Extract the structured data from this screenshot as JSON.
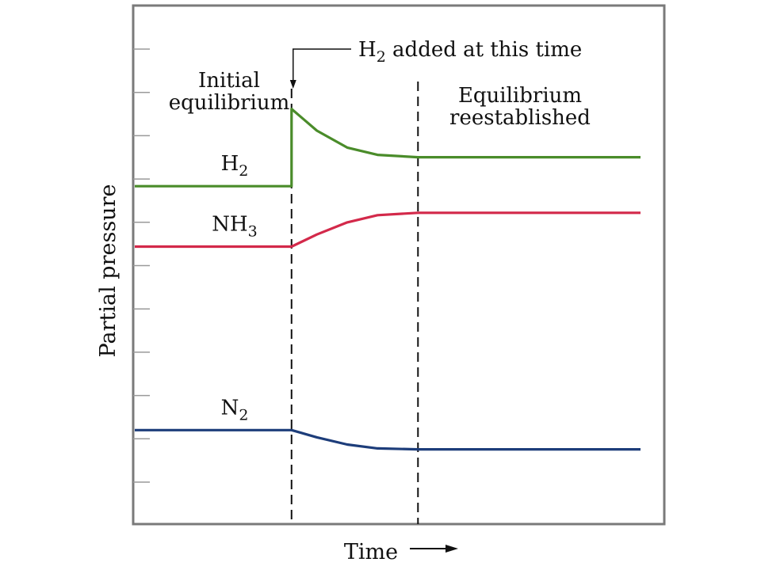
{
  "chart_data": {
    "type": "line",
    "title": "",
    "xlabel": "Time",
    "ylabel": "Partial pressure",
    "xlim": [
      0,
      10
    ],
    "ylim": [
      0,
      10
    ],
    "series": [
      {
        "name": "H2",
        "label": "H",
        "sub": "2",
        "color": "#4a8c2a",
        "points": [
          [
            0,
            6.8
          ],
          [
            3.1,
            6.8
          ],
          [
            3.1,
            8.4
          ],
          [
            3.6,
            7.95
          ],
          [
            4.2,
            7.6
          ],
          [
            4.8,
            7.45
          ],
          [
            5.6,
            7.4
          ],
          [
            10,
            7.4
          ]
        ]
      },
      {
        "name": "NH3",
        "label": "NH",
        "sub": "3",
        "color": "#d3294a",
        "points": [
          [
            0,
            5.55
          ],
          [
            3.1,
            5.55
          ],
          [
            3.6,
            5.8
          ],
          [
            4.2,
            6.05
          ],
          [
            4.8,
            6.2
          ],
          [
            5.6,
            6.25
          ],
          [
            10,
            6.25
          ]
        ]
      },
      {
        "name": "N2",
        "label": "N",
        "sub": "2",
        "color": "#1d3d7a",
        "points": [
          [
            0,
            1.75
          ],
          [
            3.1,
            1.75
          ],
          [
            3.6,
            1.6
          ],
          [
            4.2,
            1.45
          ],
          [
            4.8,
            1.37
          ],
          [
            5.6,
            1.35
          ],
          [
            10,
            1.35
          ]
        ]
      }
    ],
    "events": [
      {
        "x": 3.1,
        "lines": [
          "Initial",
          "equilibrium"
        ]
      },
      {
        "x": 5.6,
        "lines": [
          "Equilibrium",
          "reestablished"
        ]
      }
    ],
    "annotation": {
      "prefix": "H",
      "sub": "2",
      "suffix": " added at this time"
    },
    "grid": false
  }
}
